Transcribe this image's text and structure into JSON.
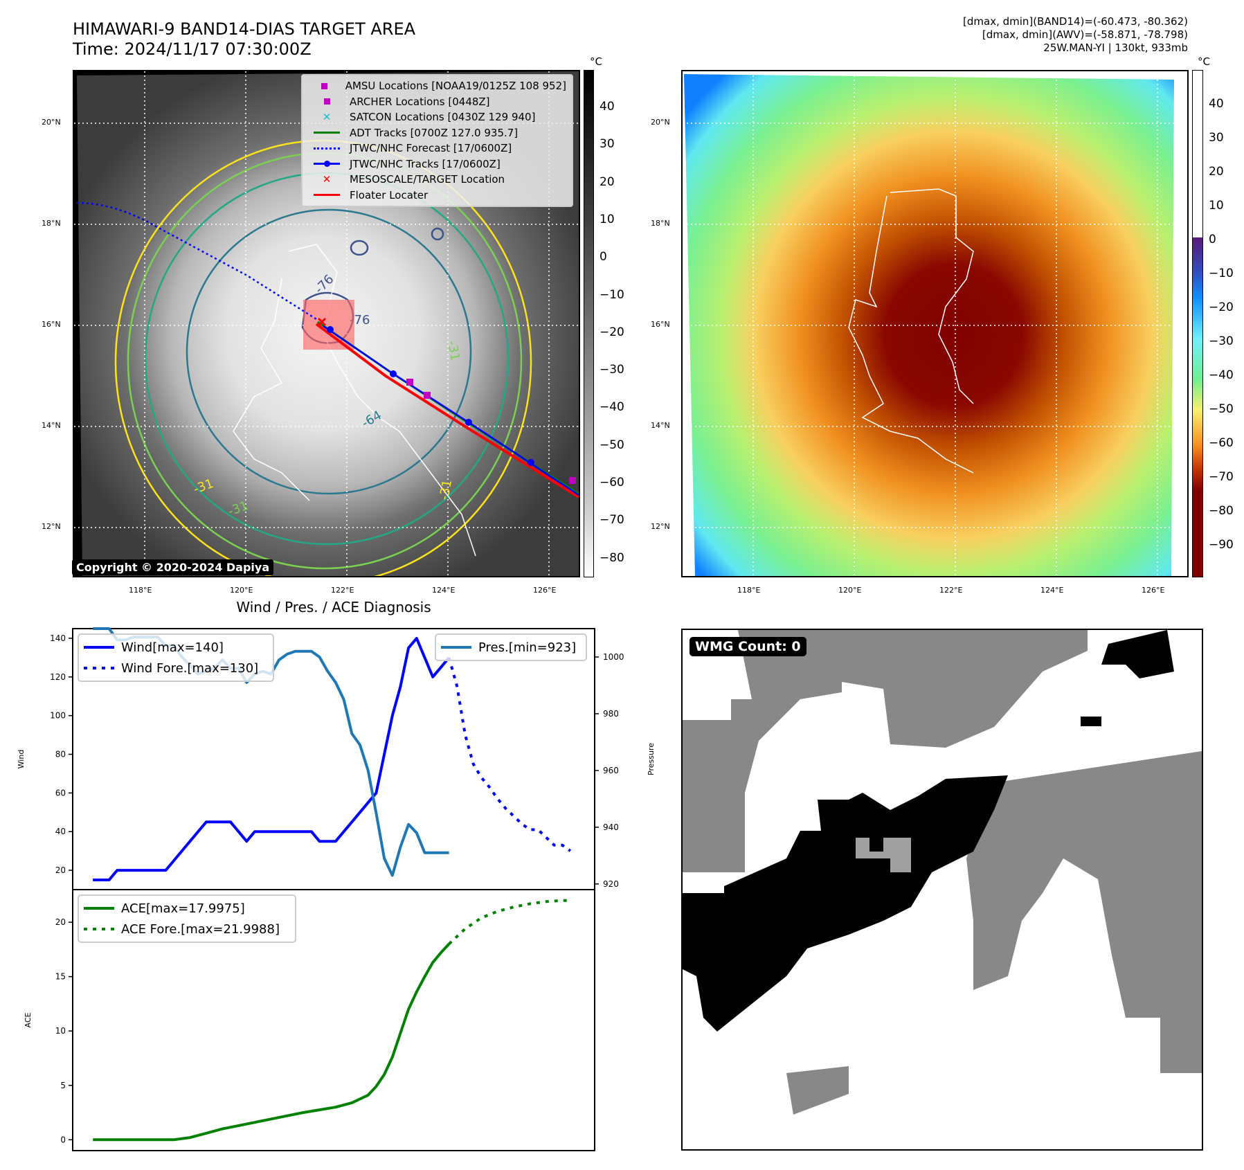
{
  "header": {
    "title": "HIMAWARI-9 BAND14-DIAS TARGET AREA",
    "time": "Time: 2024/11/17 07:30:00Z",
    "info_lines": [
      "[dmax, dmin](BAND14)=(-60.473, -80.362)",
      "[dmax, dmin](AWV)=(-58.871, -78.798)",
      "25W.MAN-YI | 130kt, 933mb"
    ]
  },
  "map_left": {
    "lat_labels": [
      "20°N",
      "18°N",
      "16°N",
      "14°N",
      "12°N"
    ],
    "lon_labels": [
      "118°E",
      "120°E",
      "122°E",
      "124°E",
      "126°E"
    ],
    "copyright": "Copyright © 2020-2024 Dapiya",
    "contour_labels": [
      "-76",
      "-76",
      "-64",
      "-31",
      "-31",
      "-31",
      "-31"
    ],
    "legend": [
      {
        "label": "AMSU Locations [NOAA19/0125Z 108 952]",
        "symbol": "square",
        "color": "#bf00bf"
      },
      {
        "label": "ARCHER Locations [0448Z]",
        "symbol": "square",
        "color": "#bf00bf"
      },
      {
        "label": "SATCON Locations [0430Z 129 940]",
        "symbol": "x",
        "color": "#17becf"
      },
      {
        "label": "ADT Tracks [0700Z 127.0 935.7]",
        "symbol": "line",
        "color": "#008000"
      },
      {
        "label": "JTWC/NHC Forecast [17/0600Z]",
        "symbol": "dotted",
        "color": "#0000ff"
      },
      {
        "label": "JTWC/NHC Tracks [17/0600Z]",
        "symbol": "line-dot",
        "color": "#0000ff"
      },
      {
        "label": "MESOSCALE/TARGET Location",
        "symbol": "x",
        "color": "#ff0000"
      },
      {
        "label": "Floater Locater",
        "symbol": "line",
        "color": "#ff0000"
      }
    ],
    "colorbar": {
      "unit": "°C",
      "ticks": [
        "40",
        "30",
        "20",
        "10",
        "0",
        "−10",
        "−20",
        "−30",
        "−40",
        "−50",
        "−60",
        "−70",
        "−80"
      ]
    }
  },
  "map_right": {
    "lat_labels": [
      "20°N",
      "18°N",
      "16°N",
      "14°N",
      "12°N"
    ],
    "lon_labels": [
      "118°E",
      "120°E",
      "122°E",
      "124°E",
      "126°E"
    ],
    "colorbar": {
      "unit": "°C",
      "ticks": [
        "40",
        "30",
        "20",
        "10",
        "0",
        "−10",
        "−20",
        "−30",
        "−40",
        "−50",
        "−60",
        "−70",
        "−80",
        "−90"
      ]
    }
  },
  "wmg": {
    "label": "WMG Count: 0"
  },
  "chart_data": [
    {
      "type": "line",
      "title": "Wind / Pres. / ACE Diagnosis",
      "xlabel": "",
      "ylabel": "Wind",
      "ylabel_right": "Pressure",
      "ylim": [
        10,
        145
      ],
      "ylim_right": [
        918,
        1010
      ],
      "yticks": [
        20,
        40,
        60,
        80,
        100,
        120,
        140
      ],
      "yticks_right": [
        920,
        940,
        960,
        980,
        1000
      ],
      "grid": false,
      "series": [
        {
          "name": "Wind[max=140]",
          "axis": "left",
          "style": "solid",
          "color": "#0000ff",
          "x": [
            0,
            2,
            3,
            4,
            5,
            6,
            7,
            8,
            9,
            10,
            11,
            12,
            13,
            14,
            15,
            16,
            17,
            18,
            19,
            20,
            21,
            22,
            23,
            24,
            25,
            26,
            27,
            28,
            29,
            30,
            31,
            32,
            33,
            34,
            35,
            36,
            37,
            38,
            39,
            40,
            41,
            42,
            43,
            44
          ],
          "values": [
            15,
            15,
            20,
            20,
            20,
            20,
            20,
            20,
            20,
            25,
            30,
            35,
            40,
            45,
            45,
            45,
            45,
            40,
            35,
            40,
            40,
            40,
            40,
            40,
            40,
            40,
            40,
            35,
            35,
            35,
            40,
            45,
            50,
            55,
            60,
            80,
            100,
            115,
            135,
            140,
            130,
            120,
            125,
            130
          ]
        },
        {
          "name": "Wind Fore.[max=130]",
          "axis": "left",
          "style": "dotted",
          "color": "#0000ff",
          "x": [
            44,
            45,
            46,
            47,
            48,
            49,
            50,
            51,
            52,
            53,
            54,
            55,
            56,
            57,
            58,
            59
          ],
          "values": [
            130,
            115,
            90,
            75,
            68,
            63,
            57,
            52,
            48,
            44,
            41,
            41,
            37,
            33,
            33,
            30
          ]
        },
        {
          "name": "Pres.[min=923]",
          "axis": "right",
          "style": "solid",
          "color": "#1f77b4",
          "x": [
            0,
            2,
            3,
            4,
            5,
            6,
            7,
            8,
            9,
            10,
            11,
            12,
            13,
            14,
            15,
            16,
            17,
            18,
            19,
            20,
            21,
            22,
            23,
            24,
            25,
            26,
            27,
            28,
            29,
            30,
            31,
            32,
            33,
            34,
            35,
            36,
            37,
            38,
            39,
            40,
            41,
            42,
            43,
            44
          ],
          "values": [
            1010,
            1010,
            1006,
            1006,
            1007,
            1007,
            1007,
            1007,
            1004,
            1004,
            1000,
            997,
            994,
            995,
            996,
            999,
            996,
            996,
            991,
            994,
            995,
            994,
            999,
            1001,
            1002,
            1002,
            1002,
            1000,
            995,
            991,
            985,
            973,
            969,
            960,
            945,
            929,
            923,
            933,
            941,
            938,
            931,
            931,
            931,
            931
          ]
        }
      ]
    },
    {
      "type": "line",
      "xlabel": "",
      "ylabel": "ACE",
      "ylim": [
        -1,
        23
      ],
      "yticks": [
        0,
        5,
        10,
        15,
        20
      ],
      "grid": false,
      "series": [
        {
          "name": "ACE[max=17.9975]",
          "style": "solid",
          "color": "#008000",
          "x": [
            0,
            2,
            4,
            6,
            8,
            10,
            12,
            14,
            16,
            18,
            20,
            22,
            24,
            26,
            28,
            30,
            32,
            34,
            35,
            36,
            37,
            38,
            39,
            40,
            41,
            42,
            43,
            44
          ],
          "values": [
            0,
            0,
            0,
            0,
            0,
            0,
            0.2,
            0.6,
            1.0,
            1.3,
            1.6,
            1.9,
            2.2,
            2.5,
            2.75,
            3.0,
            3.4,
            4.1,
            4.9,
            6.0,
            7.6,
            9.8,
            12.0,
            13.6,
            15.0,
            16.3,
            17.2,
            18.0
          ]
        },
        {
          "name": "ACE Fore.[max=21.9988]",
          "style": "dotted",
          "color": "#008000",
          "x": [
            44,
            46,
            48,
            50,
            52,
            54,
            56,
            58,
            59
          ],
          "values": [
            18.0,
            19.4,
            20.4,
            21.0,
            21.4,
            21.7,
            21.9,
            22.0,
            22.0
          ]
        }
      ]
    }
  ]
}
